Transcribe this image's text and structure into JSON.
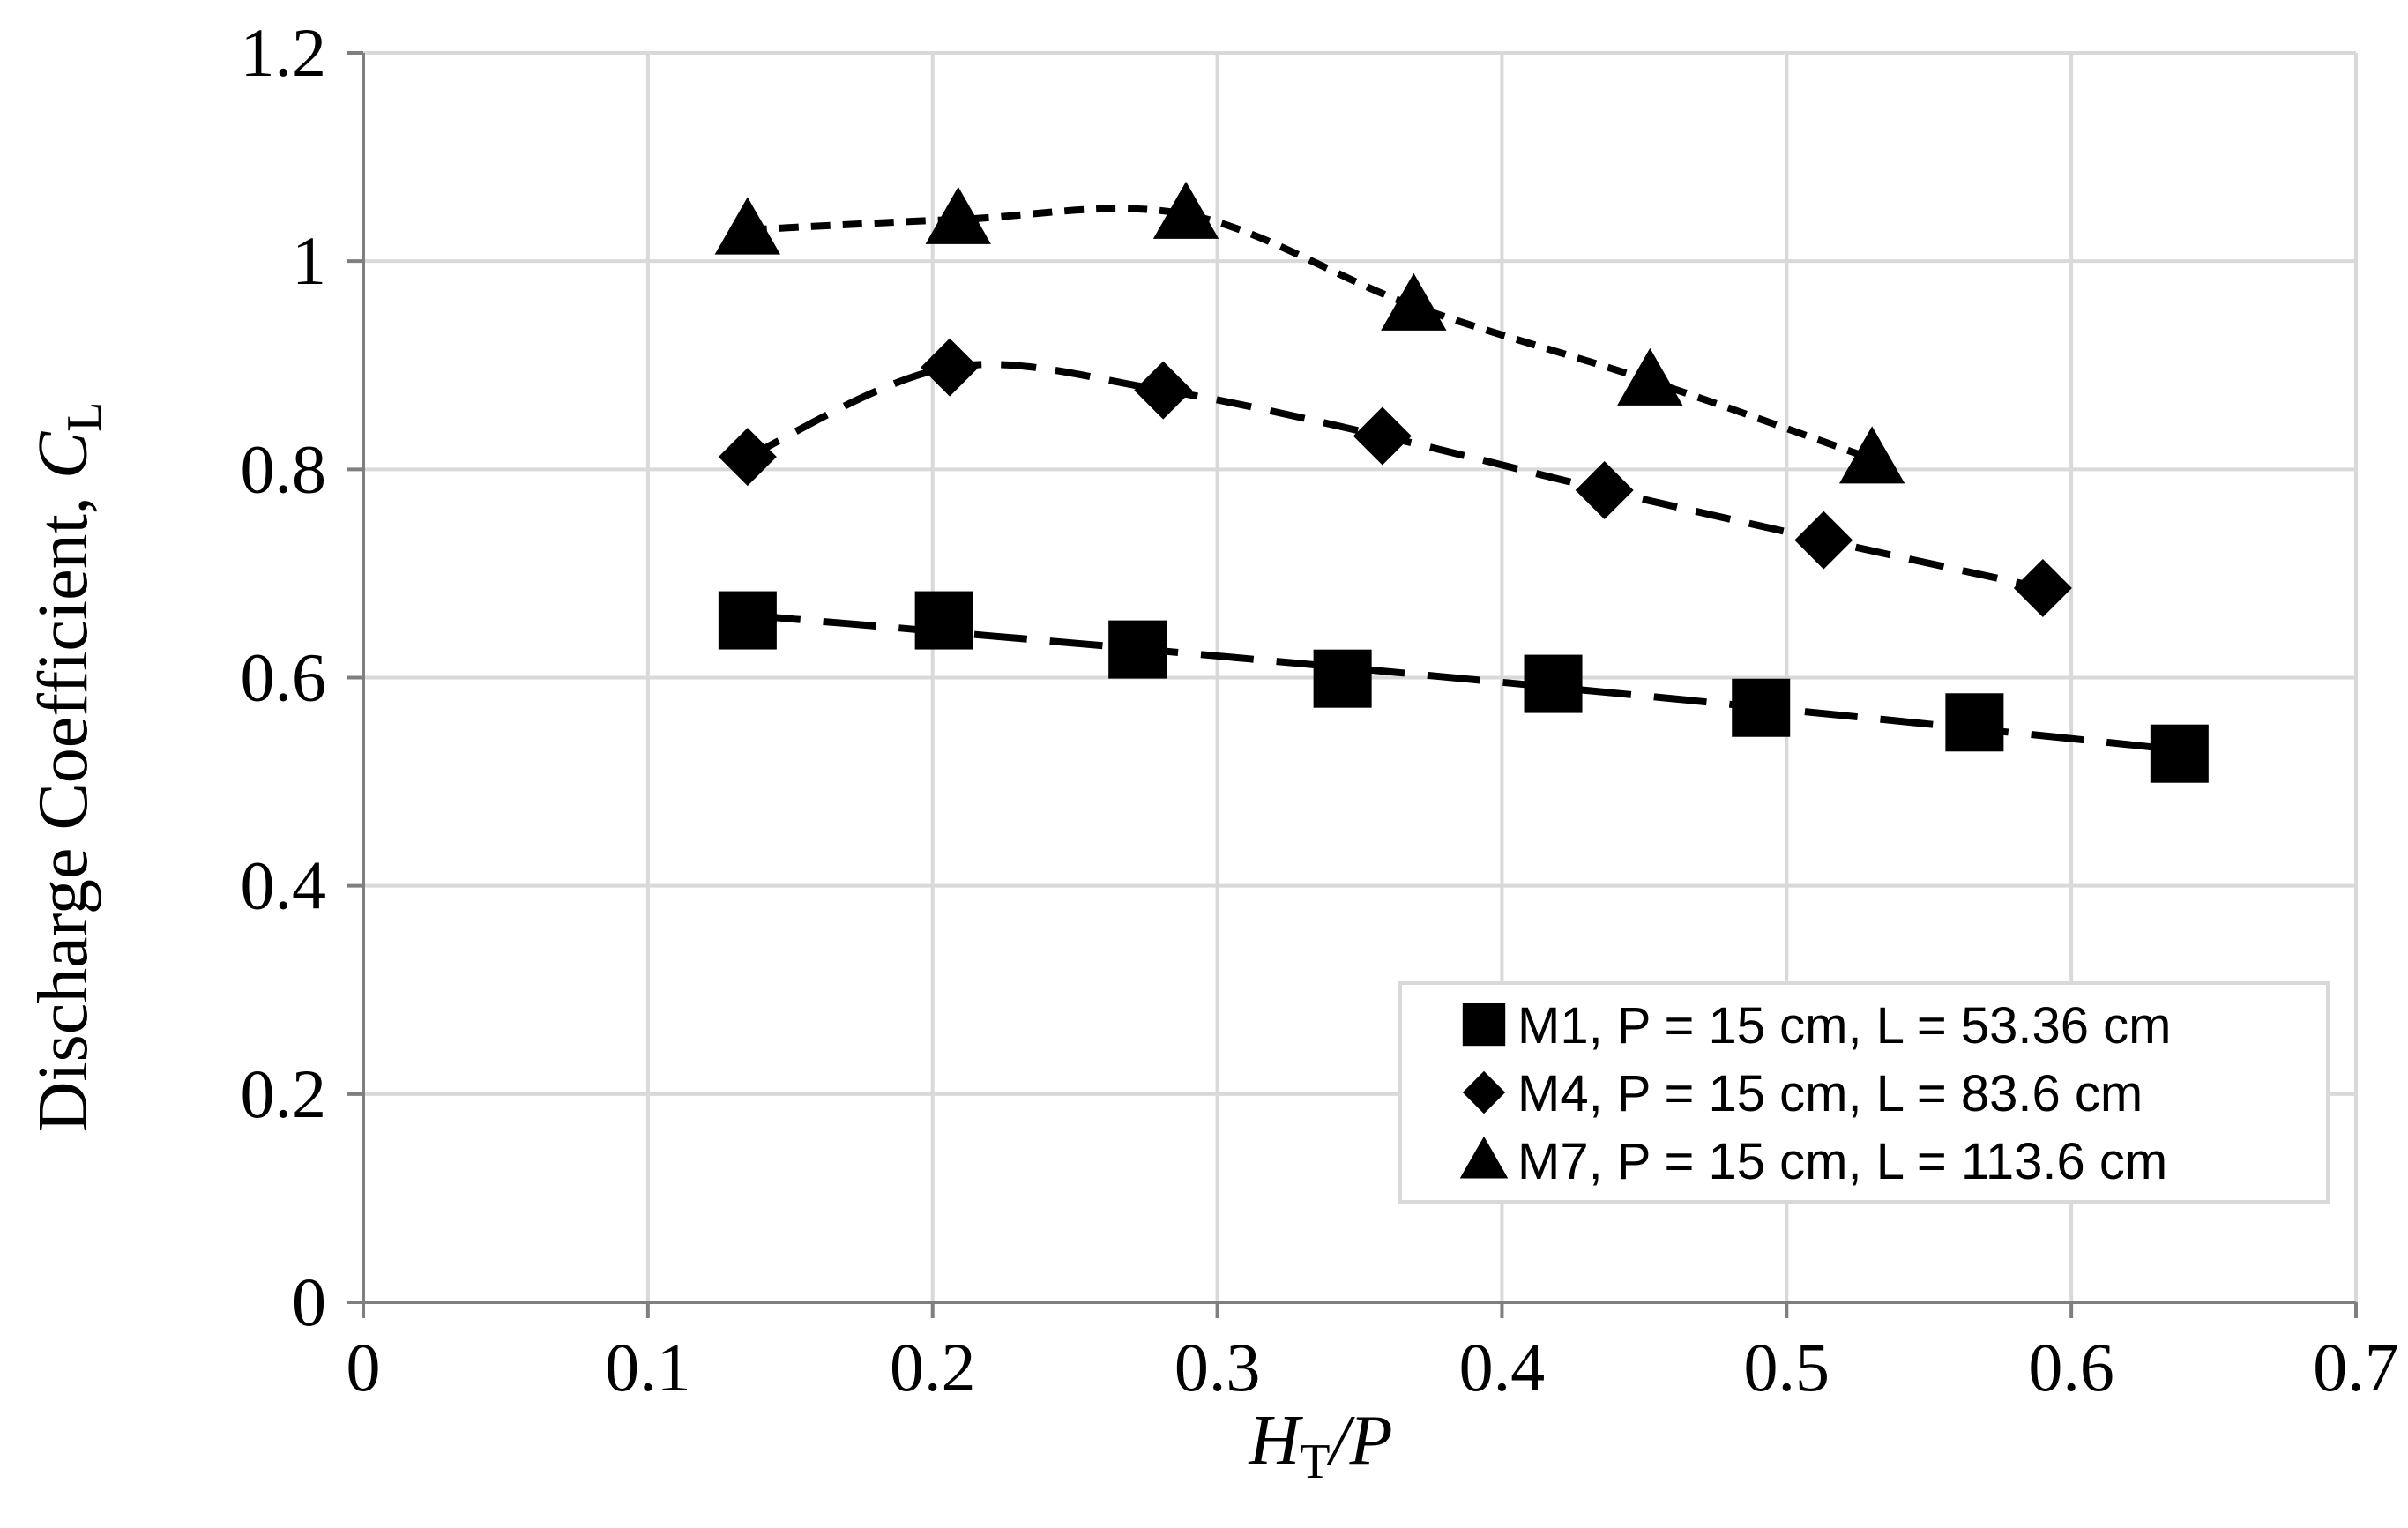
{
  "chart_data": {
    "type": "scatter",
    "xlabel": {
      "var": "H",
      "sub": "T",
      "rest": "/P"
    },
    "ylabel": {
      "prefix": "Discharge Coefficient, ",
      "var": "C",
      "sub": "L"
    },
    "xlim": [
      0,
      0.7
    ],
    "ylim": [
      0,
      1.2
    ],
    "x_ticks": [
      0,
      0.1,
      0.2,
      0.3,
      0.4,
      0.5,
      0.6,
      0.7
    ],
    "y_ticks": [
      0,
      0.2,
      0.4,
      0.6,
      0.8,
      1,
      1.2
    ],
    "x_tick_labels": [
      "0",
      "0.1",
      "0.2",
      "0.3",
      "0.4",
      "0.5",
      "0.6",
      "0.7"
    ],
    "y_tick_labels": [
      "0",
      "0.2",
      "0.4",
      "0.6",
      "0.8",
      "1",
      "1.2"
    ],
    "grid": true,
    "legend_position": "bottom-right",
    "series": [
      {
        "name": "M1, P = 15 cm, L = 53.36 cm",
        "marker": "square",
        "trendline": "long-dash",
        "x": [
          0.135,
          0.204,
          0.272,
          0.344,
          0.418,
          0.491,
          0.566,
          0.638
        ],
        "y": [
          0.655,
          0.655,
          0.627,
          0.599,
          0.594,
          0.571,
          0.557,
          0.527
        ]
      },
      {
        "name": "M4, P = 15 cm, L = 83.6 cm",
        "marker": "diamond",
        "trendline": "dash",
        "x": [
          0.135,
          0.206,
          0.281,
          0.358,
          0.436,
          0.513,
          0.59
        ],
        "y": [
          0.812,
          0.898,
          0.876,
          0.832,
          0.78,
          0.732,
          0.686
        ]
      },
      {
        "name": "M7, P = 15 cm, L = 113.6 cm",
        "marker": "triangle",
        "trendline": "short-dash",
        "x": [
          0.135,
          0.209,
          0.289,
          0.369,
          0.452,
          0.53
        ],
        "y": [
          1.03,
          1.04,
          1.045,
          0.957,
          0.885,
          0.81
        ]
      }
    ]
  }
}
